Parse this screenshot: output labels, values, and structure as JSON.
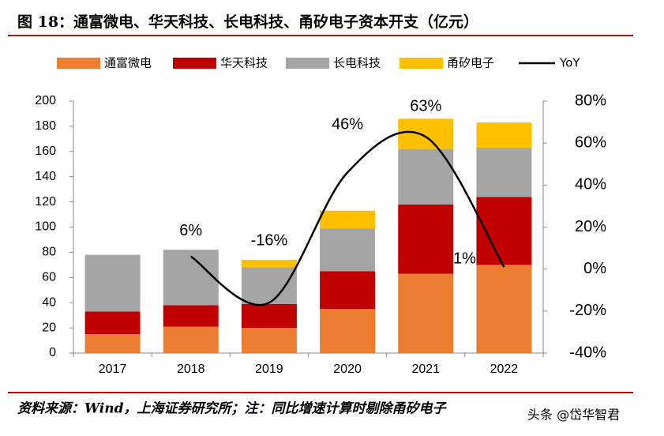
{
  "chart_data": {
    "type": "bar",
    "title": "图 18：通富微电、华天科技、长电科技、甬矽电子资本开支（亿元）",
    "source": "资料来源：Wind，上海证券研究所；注：同比增速计算时剔除甬矽电子",
    "watermark": "头条 @岱华智君",
    "categories": [
      "2017",
      "2018",
      "2019",
      "2020",
      "2021",
      "2022"
    ],
    "stacked": true,
    "series": [
      {
        "name": "通富微电",
        "color": "#ED7D31",
        "values": [
          15,
          21,
          20,
          35,
          63,
          70
        ]
      },
      {
        "name": "华天科技",
        "color": "#C00000",
        "values": [
          18,
          17,
          19,
          30,
          55,
          54
        ]
      },
      {
        "name": "长电科技",
        "color": "#A5A5A5",
        "values": [
          45,
          44,
          29,
          34,
          44,
          39
        ]
      },
      {
        "name": "甬矽电子",
        "color": "#FFC000",
        "values": [
          0,
          0,
          6,
          14,
          24,
          20
        ]
      },
      {
        "name": "YoY",
        "color": "#000000",
        "type": "line",
        "axis": "y2",
        "smooth": true,
        "values": [
          null,
          6,
          -16,
          46,
          63,
          1
        ],
        "value_labels": [
          null,
          "6%",
          "-16%",
          "46%",
          "63%",
          "1%"
        ]
      }
    ],
    "ylim": [
      0,
      200
    ],
    "yticks": [
      0,
      20,
      40,
      60,
      80,
      100,
      120,
      140,
      160,
      180,
      200
    ],
    "y2lim": [
      -40,
      80
    ],
    "y2ticks": [
      {
        "value": -40,
        "label": "-40%"
      },
      {
        "value": -20,
        "label": "-20%"
      },
      {
        "value": 0,
        "label": "0%"
      },
      {
        "value": 20,
        "label": "20%"
      },
      {
        "value": 40,
        "label": "40%"
      },
      {
        "value": 60,
        "label": "60%"
      },
      {
        "value": 80,
        "label": "80%"
      }
    ],
    "grid": false
  }
}
